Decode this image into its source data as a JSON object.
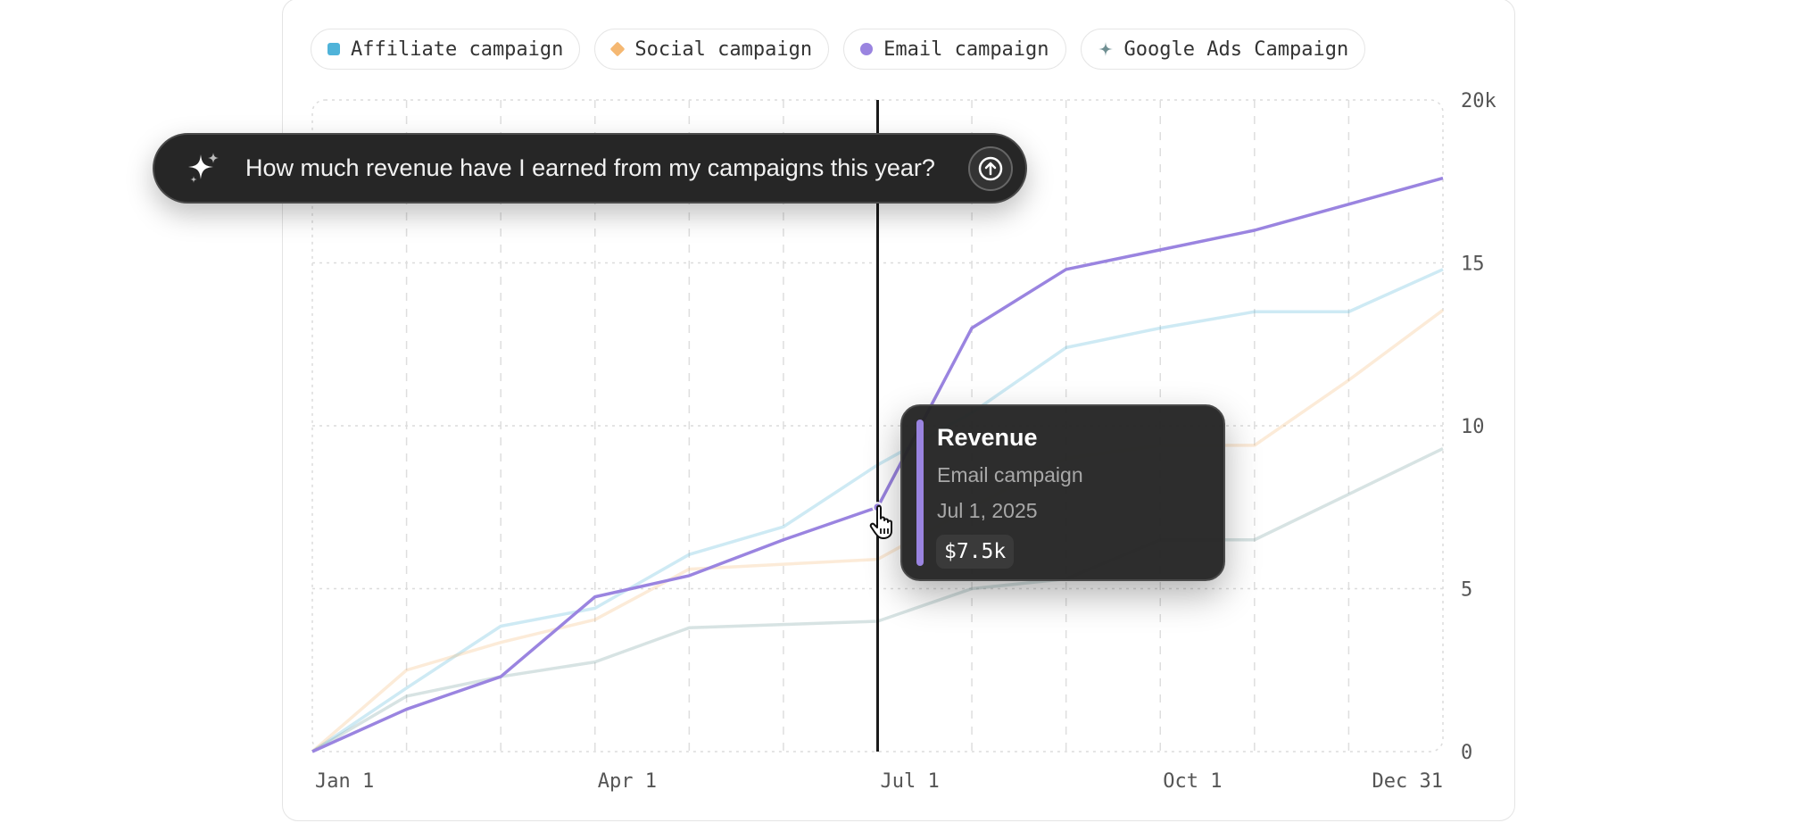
{
  "prompt": {
    "text": "How much revenue have I earned from my campaigns this year?",
    "icon": "sparkle-icon",
    "send_icon": "arrow-up-circle-icon"
  },
  "legend": [
    {
      "label": "Affiliate campaign",
      "color": "#4fb3d9",
      "shape": "square"
    },
    {
      "label": "Social campaign",
      "color": "#f5b872",
      "shape": "diamond"
    },
    {
      "label": "Email campaign",
      "color": "#9a84e0",
      "shape": "circle"
    },
    {
      "label": "Google Ads Campaign",
      "color": "#6f8f92",
      "shape": "star"
    }
  ],
  "tooltip": {
    "title": "Revenue",
    "series": "Email campaign",
    "date": "Jul 1, 2025",
    "value": "$7.5k",
    "color": "#9a84e0"
  },
  "chart_data": {
    "type": "line",
    "x": [
      "Jan 1",
      "Feb 1",
      "Mar 1",
      "Apr 1",
      "May 1",
      "Jun 1",
      "Jul 1",
      "Aug 1",
      "Sep 1",
      "Oct 1",
      "Nov 1",
      "Dec 1",
      "Dec 31"
    ],
    "x_tick_labels": [
      "Jan 1",
      "Apr 1",
      "Jul 1",
      "Oct 1",
      "Dec 31"
    ],
    "y_tick_labels": [
      "0",
      "5",
      "10",
      "15",
      "20k"
    ],
    "ylim": [
      0,
      20
    ],
    "grid": true,
    "crosshair_x": "Jul 1",
    "highlighted_series": "Email campaign",
    "series": [
      {
        "name": "Affiliate campaign",
        "color": "#4fb3d9",
        "values": [
          0,
          1.95,
          3.85,
          4.4,
          6.05,
          6.9,
          8.8,
          10.4,
          12.4,
          13.0,
          13.5,
          13.5,
          14.8
        ]
      },
      {
        "name": "Social campaign",
        "color": "#f5b872",
        "values": [
          0,
          2.5,
          3.35,
          4.05,
          5.6,
          5.75,
          5.9,
          7.5,
          9.0,
          9.4,
          9.4,
          11.4,
          13.55
        ]
      },
      {
        "name": "Google Ads Campaign",
        "color": "#6f9a9c",
        "values": [
          0,
          1.7,
          2.3,
          2.75,
          3.8,
          3.9,
          4.0,
          5.0,
          5.3,
          6.5,
          6.5,
          7.9,
          9.3
        ]
      },
      {
        "name": "Email campaign",
        "color": "#9a84e0",
        "values": [
          0,
          1.3,
          2.3,
          4.75,
          5.4,
          6.5,
          7.5,
          13.0,
          14.8,
          15.4,
          16.0,
          16.8,
          17.6
        ]
      }
    ]
  }
}
